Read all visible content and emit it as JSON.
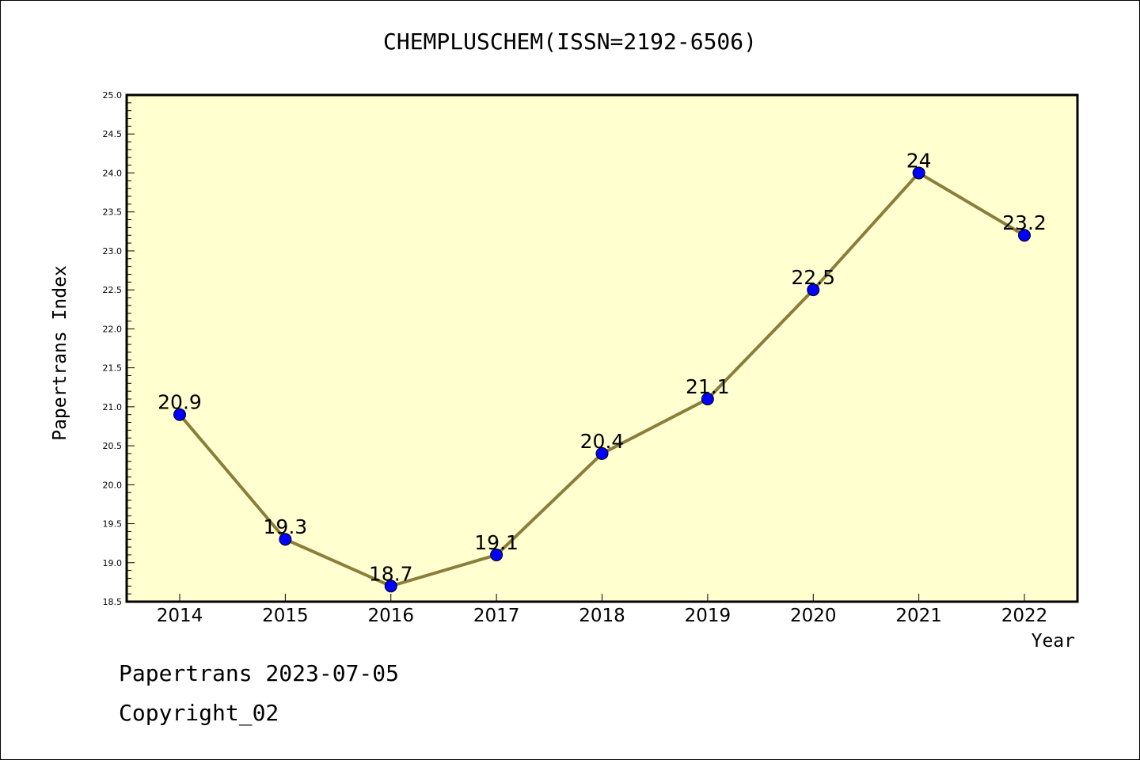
{
  "chart_data": {
    "type": "line",
    "title": "CHEMPLUSCHEM(ISSN=2192-6506)",
    "xlabel": "Year",
    "ylabel": "Papertrans Index",
    "categories": [
      "2014",
      "2015",
      "2016",
      "2017",
      "2018",
      "2019",
      "2020",
      "2021",
      "2022"
    ],
    "series": [
      {
        "values": [
          20.9,
          19.3,
          18.7,
          19.1,
          20.4,
          21.1,
          22.5,
          24,
          23.2
        ]
      }
    ],
    "data_labels": [
      "20.9",
      "19.3",
      "18.7",
      "19.1",
      "20.4",
      "21.1",
      "22.5",
      "24",
      "23.2"
    ],
    "ylim": [
      18.5,
      25.0
    ],
    "yticks": [
      "18.5",
      "19.0",
      "19.5",
      "20.0",
      "20.5",
      "21.0",
      "21.5",
      "22.0",
      "22.5",
      "23.0",
      "23.5",
      "24.0",
      "24.5",
      "25.0"
    ],
    "grid": false,
    "legend": "none",
    "colors": {
      "plot_bg": "#ffffd0",
      "line": "#8b7d3a",
      "marker": "#0000ff"
    }
  },
  "footer": {
    "line1": "Papertrans 2023-07-05",
    "line2": "Copyright_02"
  }
}
